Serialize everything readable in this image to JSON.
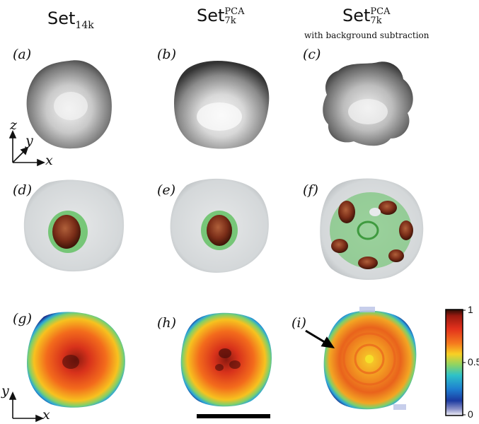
{
  "columns": [
    {
      "base": "Set",
      "sub": "14k",
      "sup": "",
      "note": ""
    },
    {
      "base": "Set",
      "sub": "7k",
      "sup": "PCA",
      "note": ""
    },
    {
      "base": "Set",
      "sub": "7k",
      "sup": "PCA",
      "note": "with background subtraction"
    }
  ],
  "panels": [
    "(a)",
    "(b)",
    "(c)",
    "(d)",
    "(e)",
    "(f)",
    "(g)",
    "(h)",
    "(i)"
  ],
  "axes_3d": {
    "z": "z",
    "y": "y",
    "x": "x"
  },
  "axes_2d": {
    "y": "y",
    "x": "x"
  },
  "colorbar": {
    "ticks": [
      "1",
      "0.5",
      "0"
    ],
    "values": [
      1,
      0.5,
      0
    ]
  },
  "colors": {
    "surface": "#8a8a8a",
    "shell": "#c8cdd0",
    "green_iso": "#5cbf5c",
    "core": "#7a2d18"
  }
}
